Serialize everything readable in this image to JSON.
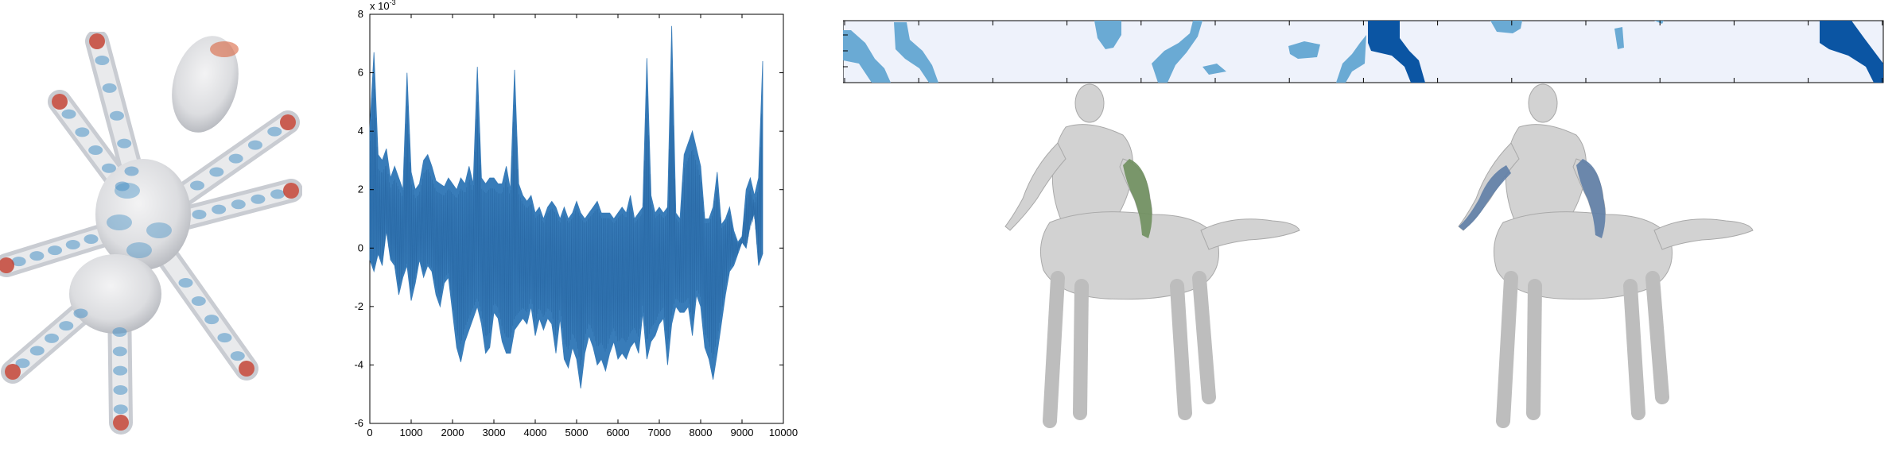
{
  "chart_data": {
    "type": "line",
    "title": "",
    "xlabel": "",
    "ylabel": "",
    "exponent_label": "x 10",
    "exponent_power": "-3",
    "xlim": [
      0,
      10000
    ],
    "ylim": [
      -6,
      8
    ],
    "x_ticks": [
      "0",
      "1000",
      "2000",
      "3000",
      "4000",
      "5000",
      "6000",
      "7000",
      "8000",
      "9000",
      "10000"
    ],
    "y_ticks": [
      "-6",
      "-4",
      "-2",
      "0",
      "2",
      "4",
      "6",
      "8"
    ],
    "series": [
      {
        "color": "#2e75b6",
        "x": [
          0,
          100,
          200,
          300,
          400,
          500,
          600,
          700,
          800,
          900,
          1000,
          1100,
          1200,
          1300,
          1400,
          1500,
          1600,
          1700,
          1800,
          1900,
          2000,
          2100,
          2200,
          2300,
          2400,
          2500,
          2600,
          2700,
          2800,
          2900,
          3000,
          3100,
          3200,
          3300,
          3400,
          3500,
          3600,
          3700,
          3800,
          3900,
          4000,
          4100,
          4200,
          4300,
          4400,
          4500,
          4600,
          4700,
          4800,
          4900,
          5000,
          5100,
          5200,
          5300,
          5400,
          5500,
          5600,
          5700,
          5800,
          5900,
          6000,
          6100,
          6200,
          6300,
          6400,
          6500,
          6600,
          6700,
          6800,
          6900,
          7000,
          7100,
          7200,
          7300,
          7400,
          7500,
          7600,
          7700,
          7800,
          7900,
          8000,
          8100,
          8200,
          8300,
          8400,
          8500,
          8600,
          8700,
          8800,
          8900,
          9000,
          9100,
          9200,
          9300,
          9400,
          9500
        ],
        "upper": [
          4.1,
          6.7,
          3.2,
          3.0,
          3.4,
          2.4,
          2.8,
          2.4,
          2.0,
          6.0,
          2.6,
          2.0,
          2.2,
          3.0,
          3.2,
          2.8,
          2.3,
          2.2,
          2.1,
          2.4,
          2.2,
          2.0,
          2.4,
          2.2,
          2.8,
          2.2,
          6.2,
          2.4,
          2.2,
          2.4,
          2.4,
          2.2,
          2.2,
          2.8,
          2.0,
          6.1,
          2.2,
          1.8,
          1.6,
          1.8,
          1.2,
          1.4,
          1.0,
          1.4,
          1.6,
          1.4,
          1.0,
          1.4,
          1.0,
          1.2,
          1.6,
          1.2,
          1.0,
          1.2,
          1.4,
          1.6,
          1.2,
          1.2,
          1.2,
          1.0,
          1.2,
          1.4,
          1.2,
          1.8,
          1.0,
          1.2,
          1.4,
          6.5,
          1.8,
          1.2,
          1.4,
          1.2,
          1.4,
          7.6,
          1.2,
          1.0,
          3.2,
          3.6,
          4.0,
          3.4,
          2.8,
          1.0,
          1.0,
          1.4,
          2.6,
          0.8,
          1.0,
          1.4,
          0.6,
          0.2,
          0.4,
          2.0,
          2.4,
          1.8,
          2.4,
          6.4
        ],
        "lower": [
          -0.4,
          -0.8,
          -0.2,
          -0.6,
          0.6,
          -0.4,
          -0.6,
          -1.6,
          -1.0,
          -0.6,
          -1.8,
          -1.2,
          -0.4,
          -1.0,
          -0.6,
          -0.8,
          -1.6,
          -2.0,
          -1.2,
          -1.0,
          -2.2,
          -3.4,
          -3.9,
          -3.2,
          -2.8,
          -2.4,
          -2.0,
          -2.6,
          -3.6,
          -3.4,
          -2.2,
          -2.4,
          -3.2,
          -3.6,
          -3.6,
          -2.8,
          -2.6,
          -2.4,
          -2.6,
          -2.0,
          -3.0,
          -2.4,
          -2.8,
          -2.4,
          -2.6,
          -3.6,
          -2.4,
          -3.8,
          -4.1,
          -3.4,
          -3.8,
          -4.8,
          -3.6,
          -3.0,
          -3.4,
          -4.0,
          -3.8,
          -4.2,
          -3.6,
          -3.2,
          -3.8,
          -3.6,
          -3.8,
          -3.4,
          -3.2,
          -3.6,
          -2.2,
          -3.8,
          -3.2,
          -3.0,
          -2.6,
          -2.4,
          -4.0,
          -2.6,
          -2.0,
          -2.2,
          -2.2,
          -2.0,
          -3.0,
          -1.6,
          -2.0,
          -3.4,
          -3.8,
          -4.5,
          -3.6,
          -2.6,
          -1.6,
          -0.8,
          -0.6,
          -0.2,
          0.2,
          0.0,
          0.8,
          1.2,
          -0.6,
          -0.2
        ]
      }
    ]
  },
  "strip": {
    "colors": {
      "background": "#eef2fb",
      "light": "#6aaad4",
      "dark": "#0b55a3"
    }
  },
  "mesh": {
    "colors": {
      "body": "#e8e8ea",
      "blue": "#4a92c6",
      "red": "#c0392b"
    }
  },
  "centaur": {
    "colors": {
      "body": "#d2d2d2",
      "highlight_green": "#6f8f5e",
      "highlight_blue": "#5f7ea6"
    }
  }
}
